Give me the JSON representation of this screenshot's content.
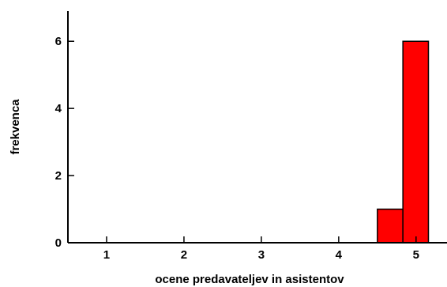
{
  "chart_data": {
    "type": "bar",
    "title": "",
    "xlabel": "ocene predavateljev in asistentov",
    "ylabel": "frekvenca",
    "x_ticks": [
      1,
      2,
      3,
      4,
      5
    ],
    "y_ticks": [
      0,
      2,
      4,
      6
    ],
    "xlim": [
      0.5,
      5.4
    ],
    "ylim": [
      0,
      6.9
    ],
    "grid": false,
    "legend": "none",
    "bins": [
      {
        "start": 4.5,
        "end": 4.83,
        "value": 1
      },
      {
        "start": 4.83,
        "end": 5.16,
        "value": 6
      }
    ],
    "bar_color": "#ff0000",
    "edge_color": "#000000"
  }
}
